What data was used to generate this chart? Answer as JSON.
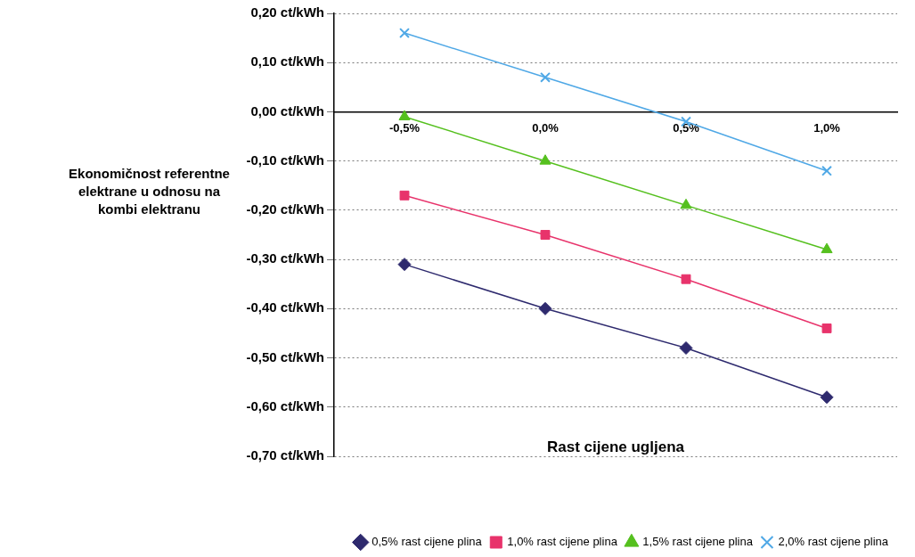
{
  "chart_data": {
    "type": "line",
    "xlabel": "Rast cijene ugljena",
    "ylabel": "Ekonomičnost referentne elektrane u odnosu na kombi elektranu",
    "categories": [
      "-0,5%",
      "0,0%",
      "0,5%",
      "1,0%"
    ],
    "series": [
      {
        "name": "0,5% rast cijene plina",
        "color": "#2e2a6e",
        "marker": "diamond",
        "values": [
          -0.31,
          -0.4,
          -0.48,
          -0.58
        ]
      },
      {
        "name": "1,0% rast cijene plina",
        "color": "#e8336b",
        "marker": "square",
        "values": [
          -0.17,
          -0.25,
          -0.34,
          -0.44
        ]
      },
      {
        "name": "1,5% rast cijene plina",
        "color": "#55c01e",
        "marker": "triangle",
        "values": [
          -0.01,
          -0.1,
          -0.19,
          -0.28
        ]
      },
      {
        "name": "2,0% rast cijene plina",
        "color": "#4fa8e6",
        "marker": "cross",
        "values": [
          0.16,
          0.07,
          -0.02,
          -0.12
        ]
      }
    ],
    "ylim": [
      -0.7,
      0.2
    ],
    "yticks": [
      {
        "value": 0.2,
        "label": "0,20 ct/kWh"
      },
      {
        "value": 0.1,
        "label": "0,10 ct/kWh"
      },
      {
        "value": 0,
        "label": "0,00 ct/kWh"
      },
      {
        "value": -0.1,
        "label": "-0,10 ct/kWh"
      },
      {
        "value": -0.2,
        "label": "-0,20 ct/kWh"
      },
      {
        "value": -0.3,
        "label": "-0,30 ct/kWh"
      },
      {
        "value": -0.4,
        "label": "-0,40 ct/kWh"
      },
      {
        "value": -0.5,
        "label": "-0,50 ct/kWh"
      },
      {
        "value": -0.6,
        "label": "-0,60 ct/kWh"
      },
      {
        "value": -0.7,
        "label": "-0,70 ct/kWh"
      }
    ],
    "grid": "y",
    "legend": "bottom",
    "line_style": "solid"
  }
}
